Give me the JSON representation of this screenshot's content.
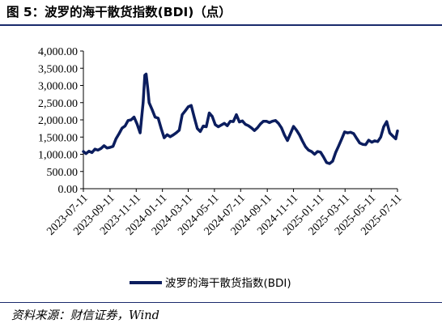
{
  "header": {
    "title": "图 5：波罗的海干散货指数(BDI)（点）"
  },
  "footer": {
    "source": "资料来源：财信证券，Wind"
  },
  "colors": {
    "series": "#0b1d5e",
    "rule": "#1a2a6c"
  },
  "chart_data": {
    "type": "line",
    "title": "",
    "xlabel": "",
    "ylabel": "",
    "ylim": [
      0,
      4000
    ],
    "y_ticks": [
      0,
      500,
      1000,
      1500,
      2000,
      2500,
      3000,
      3500,
      4000
    ],
    "y_tick_labels": [
      "0.00",
      "500.00",
      "1,000.00",
      "1,500.00",
      "2,000.00",
      "2,500.00",
      "3,000.00",
      "3,500.00",
      "4,000.00"
    ],
    "x_range": [
      "2023-07-11",
      "2025-07-11"
    ],
    "x_tick_labels": [
      "2023-07-11",
      "2023-09-11",
      "2023-11-11",
      "2024-01-11",
      "2024-03-11",
      "2024-05-11",
      "2024-07-11",
      "2024-09-11",
      "2024-11-11",
      "2025-01-11",
      "2025-03-11",
      "2025-05-11",
      "2025-07-11"
    ],
    "grid": false,
    "legend": "bottom",
    "series": [
      {
        "name": "波罗的海干散货指数(BDI)",
        "x": [
          "2023-07-11",
          "2023-07-17",
          "2023-07-24",
          "2023-07-31",
          "2023-08-07",
          "2023-08-14",
          "2023-08-21",
          "2023-08-28",
          "2023-09-04",
          "2023-09-11",
          "2023-09-18",
          "2023-09-25",
          "2023-10-02",
          "2023-10-09",
          "2023-10-16",
          "2023-10-23",
          "2023-10-30",
          "2023-11-06",
          "2023-11-13",
          "2023-11-20",
          "2023-11-27",
          "2023-12-01",
          "2023-12-04",
          "2023-12-08",
          "2023-12-11",
          "2023-12-18",
          "2023-12-25",
          "2024-01-01",
          "2024-01-08",
          "2024-01-15",
          "2024-01-22",
          "2024-01-29",
          "2024-02-05",
          "2024-02-12",
          "2024-02-19",
          "2024-02-26",
          "2024-03-04",
          "2024-03-11",
          "2024-03-18",
          "2024-03-25",
          "2024-04-01",
          "2024-04-08",
          "2024-04-15",
          "2024-04-22",
          "2024-04-29",
          "2024-05-06",
          "2024-05-13",
          "2024-05-20",
          "2024-05-27",
          "2024-06-03",
          "2024-06-10",
          "2024-06-17",
          "2024-06-24",
          "2024-07-01",
          "2024-07-08",
          "2024-07-15",
          "2024-07-22",
          "2024-07-29",
          "2024-08-05",
          "2024-08-12",
          "2024-08-19",
          "2024-08-26",
          "2024-09-02",
          "2024-09-09",
          "2024-09-16",
          "2024-09-23",
          "2024-09-30",
          "2024-10-07",
          "2024-10-14",
          "2024-10-21",
          "2024-10-28",
          "2024-11-04",
          "2024-11-11",
          "2024-11-18",
          "2024-11-25",
          "2024-12-02",
          "2024-12-09",
          "2024-12-16",
          "2024-12-23",
          "2024-12-30",
          "2025-01-06",
          "2025-01-13",
          "2025-01-20",
          "2025-01-27",
          "2025-02-03",
          "2025-02-10",
          "2025-02-17",
          "2025-02-24",
          "2025-03-03",
          "2025-03-10",
          "2025-03-17",
          "2025-03-24",
          "2025-03-31",
          "2025-04-07",
          "2025-04-14",
          "2025-04-21",
          "2025-04-28",
          "2025-05-05",
          "2025-05-12",
          "2025-05-19",
          "2025-05-26",
          "2025-06-02",
          "2025-06-09",
          "2025-06-16",
          "2025-06-23",
          "2025-06-30",
          "2025-07-07",
          "2025-07-11"
        ],
        "values": [
          1080,
          1020,
          1090,
          1050,
          1150,
          1120,
          1170,
          1250,
          1180,
          1200,
          1230,
          1450,
          1600,
          1760,
          1820,
          1980,
          2000,
          2080,
          1880,
          1620,
          2500,
          3300,
          3330,
          2900,
          2500,
          2300,
          2080,
          2050,
          1750,
          1480,
          1570,
          1510,
          1560,
          1620,
          1700,
          2150,
          2260,
          2380,
          2420,
          2080,
          1750,
          1660,
          1820,
          1800,
          2200,
          2100,
          1860,
          1800,
          1850,
          1900,
          1830,
          1960,
          1950,
          2150,
          1940,
          1970,
          1870,
          1830,
          1770,
          1690,
          1770,
          1880,
          1960,
          1960,
          1920,
          1960,
          1980,
          1900,
          1770,
          1560,
          1400,
          1600,
          1810,
          1700,
          1560,
          1380,
          1220,
          1120,
          1080,
          1000,
          1080,
          1060,
          920,
          760,
          730,
          800,
          1050,
          1240,
          1440,
          1650,
          1620,
          1640,
          1600,
          1460,
          1330,
          1290,
          1280,
          1410,
          1350,
          1390,
          1370,
          1500,
          1800,
          1950,
          1620,
          1530,
          1450,
          1680
        ]
      }
    ]
  }
}
